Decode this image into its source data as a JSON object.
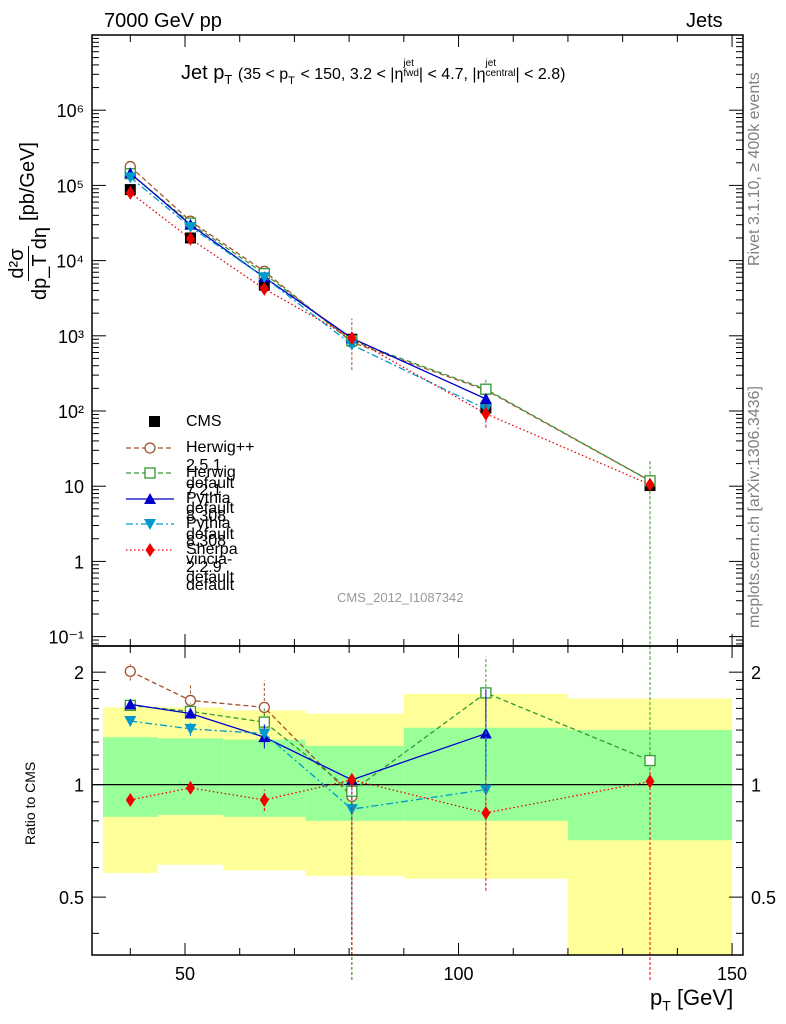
{
  "header": {
    "left": "7000 GeV pp",
    "right": "Jets",
    "title_main": "Jet p",
    "title_main_sub": "T",
    "title_cond": "(35 < p",
    "title_cond_sub": "T",
    "title_cond2": "< 150, 3.2 < |η",
    "eta_fwd_sup": "jet",
    "eta_fwd_sub": "fwd",
    "title_cond3": "| < 4.7, |η",
    "eta_central_sup": "jet",
    "eta_central_sub": "central",
    "title_cond4": "| < 2.8)"
  },
  "side_labels": {
    "rivet": "Rivet 3.1.10, ≥ 400k events",
    "mcplots": "mcplots.cern.ch [arXiv:1306.3436]"
  },
  "watermark": "CMS_2012_I1087342",
  "axes": {
    "main_ylabel": "d²σ / dp_T dη [pb/GeV]",
    "main_ylabel_num": "d²σ",
    "main_ylabel_den": "dp_T dη",
    "main_ylabel_unit": "[pb/GeV]",
    "ratio_ylabel": "Ratio to CMS",
    "xlabel": "p_T [GeV]",
    "xlabel_main": "p",
    "xlabel_sub": "T",
    "xlabel_unit": "[GeV]",
    "xticks": [
      "50",
      "100",
      "150"
    ],
    "main_yticks": [
      "10⁻¹",
      "1",
      "10",
      "10²",
      "10³",
      "10⁴",
      "10⁵",
      "10⁶"
    ],
    "ratio_yticks": [
      "0.5",
      "1",
      "2"
    ]
  },
  "colors": {
    "cms": "#000000",
    "herwigpp": "#a0522d",
    "herwig7": "#339933",
    "pythia": "#0000cc",
    "vincia": "#0099cc",
    "sherpa": "#ee0000",
    "band_inner": "#99ff99",
    "band_outer": "#ffff99"
  },
  "chart_data": [
    {
      "type": "scatter",
      "panel": "main",
      "title": "Jet p_T (35 < p_T < 150, 3.2 < |η_fwd^jet| < 4.7, |η_central^jet| < 2.8)",
      "xlabel": "p_T [GeV]",
      "ylabel": "d²σ/dp_T dη [pb/GeV]",
      "xlim": [
        33,
        152
      ],
      "ylim": [
        0.075,
        10000000
      ],
      "yscale": "log",
      "x": [
        40,
        51,
        64.5,
        80.5,
        105,
        135
      ],
      "bin_edges": [
        35,
        45,
        57,
        72,
        90,
        120,
        150
      ],
      "legend_position": "center-left",
      "series": [
        {
          "name": "CMS",
          "key": "cms",
          "marker": "square-filled",
          "style": "none",
          "values": [
            88000,
            20000,
            4700,
            900,
            110,
            10.2
          ]
        },
        {
          "name": "Herwig++ 2.5.1 default",
          "key": "herwigpp",
          "marker": "circle-open",
          "style": "dashed",
          "values": [
            178000,
            33500,
            7200,
            820,
            190,
            11.8
          ]
        },
        {
          "name": "Herwig 7.2.1 default",
          "key": "herwig7",
          "marker": "square-open",
          "style": "dashed",
          "values": [
            143000,
            31500,
            6700,
            860,
            195,
            11.8
          ]
        },
        {
          "name": "Pythia 8.308 default",
          "key": "pythia",
          "marker": "triangle-up",
          "style": "solid",
          "values": [
            145000,
            30000,
            6000,
            930,
            145,
            null
          ]
        },
        {
          "name": "Pythia 8.308 vincia-default",
          "key": "vincia",
          "marker": "triangle-down",
          "style": "dashdot",
          "values": [
            128000,
            28000,
            6000,
            760,
            106,
            null
          ]
        },
        {
          "name": "Sherpa 2.2.9 default",
          "key": "sherpa",
          "marker": "diamond",
          "style": "dotted",
          "values": [
            80000,
            19500,
            4200,
            930,
            92,
            10.5
          ]
        }
      ]
    },
    {
      "type": "scatter",
      "panel": "ratio",
      "ylabel": "Ratio to CMS",
      "xlabel": "p_T [GeV]",
      "ylim": [
        0.35,
        2.35
      ],
      "yscale": "log",
      "x": [
        40,
        51,
        64.5,
        80.5,
        105,
        135
      ],
      "bin_edges": [
        35,
        45,
        57,
        72,
        90,
        120,
        150
      ],
      "band_inner": {
        "lo": [
          0.82,
          0.83,
          0.82,
          0.8,
          0.8,
          0.71
        ],
        "hi": [
          1.34,
          1.33,
          1.32,
          1.27,
          1.42,
          1.4
        ]
      },
      "band_outer": {
        "lo": [
          0.58,
          0.61,
          0.59,
          0.57,
          0.56,
          0.33
        ],
        "hi": [
          1.61,
          1.61,
          1.58,
          1.55,
          1.75,
          1.7
        ]
      },
      "series": [
        {
          "name": "Herwig++ 2.5.1 default",
          "key": "herwigpp",
          "values": [
            2.01,
            1.68,
            1.61,
            0.93,
            null,
            null
          ]
        },
        {
          "name": "Herwig 7.2.1 default",
          "key": "herwig7",
          "values": [
            1.63,
            1.57,
            1.47,
            0.96,
            1.76,
            1.16
          ]
        },
        {
          "name": "Pythia 8.308 default",
          "key": "pythia",
          "values": [
            1.64,
            1.55,
            1.34,
            1.03,
            1.37,
            null
          ]
        },
        {
          "name": "Pythia 8.308 vincia-default",
          "key": "vincia",
          "values": [
            1.48,
            1.41,
            1.37,
            0.86,
            0.97,
            null
          ]
        },
        {
          "name": "Sherpa 2.2.9 default",
          "key": "sherpa",
          "values": [
            0.91,
            0.98,
            0.91,
            1.03,
            0.84,
            1.02
          ]
        }
      ]
    }
  ]
}
